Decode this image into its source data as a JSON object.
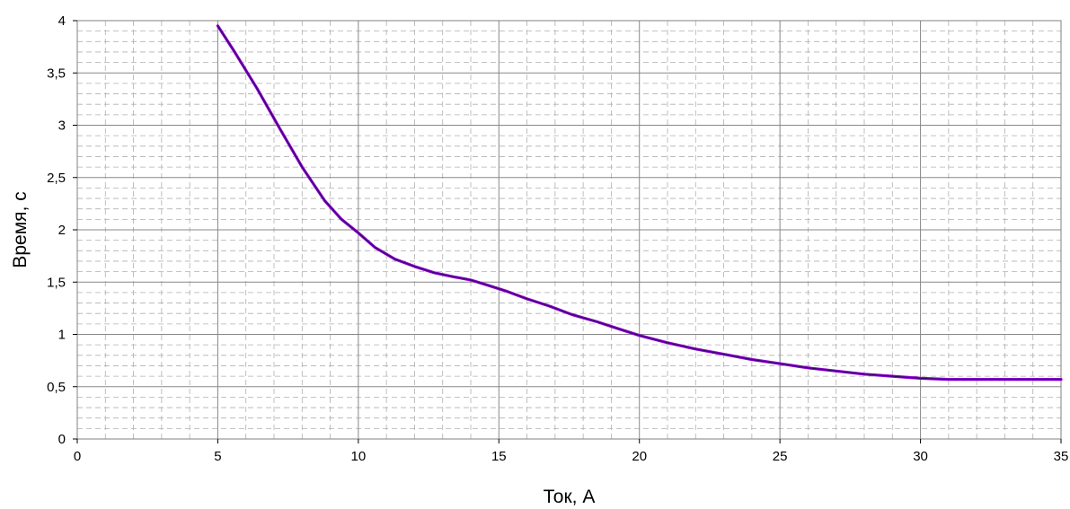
{
  "chart_data": {
    "type": "line",
    "title": "",
    "xlabel": "Ток, А",
    "ylabel": "Время, с",
    "xlim": [
      0,
      35
    ],
    "ylim": [
      0,
      4
    ],
    "x_ticks": [
      "0",
      "5",
      "10",
      "15",
      "20",
      "25",
      "30",
      "35"
    ],
    "y_ticks": [
      "0",
      "0,5",
      "1",
      "1,5",
      "2",
      "2,5",
      "3",
      "3,5",
      "4"
    ],
    "grid": {
      "major": true,
      "minor_dashed": true
    },
    "legend": "none",
    "colors": {
      "line": "#8800cc",
      "line_core": "#330066",
      "grid_major": "#888888",
      "grid_minor": "#b0b0b0"
    },
    "series": [
      {
        "x": [
          5,
          5.6,
          6.4,
          7.2,
          8,
          8.8,
          9.4,
          10,
          10.6,
          11.3,
          12,
          12.7,
          13.4,
          14,
          14.6,
          15.3,
          16,
          16.8,
          17.6,
          18.5,
          19.3,
          20,
          21,
          22,
          23,
          24,
          25,
          26,
          27,
          28,
          29,
          30,
          31,
          32,
          33,
          34,
          35
        ],
        "y": [
          3.95,
          3.7,
          3.35,
          2.97,
          2.6,
          2.28,
          2.1,
          1.97,
          1.83,
          1.72,
          1.65,
          1.59,
          1.55,
          1.52,
          1.47,
          1.41,
          1.34,
          1.27,
          1.19,
          1.12,
          1.05,
          0.99,
          0.92,
          0.86,
          0.81,
          0.76,
          0.72,
          0.68,
          0.65,
          0.62,
          0.6,
          0.58,
          0.57,
          0.57,
          0.57,
          0.57,
          0.57
        ]
      }
    ]
  }
}
